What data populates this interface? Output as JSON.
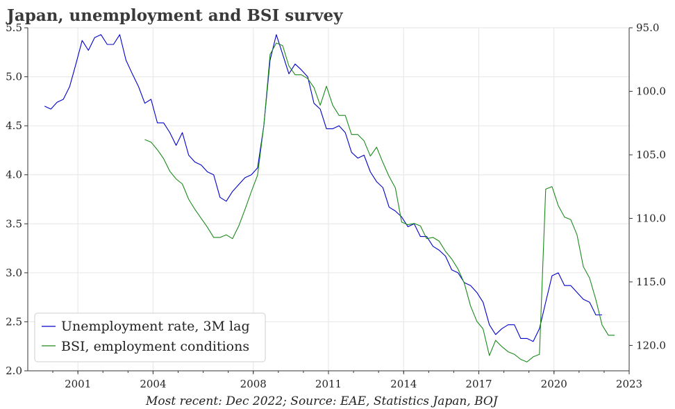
{
  "chart_data": {
    "type": "line",
    "title": "Japan, unemployment and BSI survey",
    "source": "Most recent: Dec 2022; Source: EAE, Statistics Japan, BOJ",
    "grid": true,
    "legend_position": "bottom-left",
    "x_ticks": [
      "2001",
      "2004",
      "2008",
      "2011",
      "2014",
      "2017",
      "2020",
      "2023"
    ],
    "y_left": {
      "range": [
        2.0,
        5.5
      ],
      "ticks": [
        "2.0",
        "2.5",
        "3.0",
        "3.5",
        "4.0",
        "4.5",
        "5.0",
        "5.5"
      ]
    },
    "y_right": {
      "range": [
        95.0,
        122.0
      ],
      "inverted": true,
      "ticks": [
        "95.0",
        "100.0",
        "105.0",
        "110.0",
        "115.0",
        "120.0"
      ]
    },
    "series": [
      {
        "name": "Unemployment rate, 3M lag",
        "color": "#0000cc",
        "axis": "left",
        "x": [
          1999.67,
          1999.92,
          2000.17,
          2000.42,
          2000.67,
          2000.92,
          2001.17,
          2001.42,
          2001.67,
          2001.92,
          2002.17,
          2002.42,
          2002.67,
          2002.92,
          2003.17,
          2003.42,
          2003.67,
          2003.92,
          2004.17,
          2004.42,
          2004.67,
          2004.92,
          2005.17,
          2005.42,
          2005.67,
          2005.92,
          2006.17,
          2006.42,
          2006.67,
          2006.92,
          2007.17,
          2007.42,
          2007.67,
          2007.92,
          2008.17,
          2008.42,
          2008.67,
          2008.92,
          2009.17,
          2009.42,
          2009.67,
          2009.92,
          2010.17,
          2010.42,
          2010.67,
          2010.92,
          2011.17,
          2011.42,
          2011.67,
          2011.92,
          2012.17,
          2012.42,
          2012.67,
          2012.92,
          2013.17,
          2013.42,
          2013.67,
          2013.92,
          2014.17,
          2014.42,
          2014.67,
          2014.92,
          2015.17,
          2015.42,
          2015.67,
          2015.92,
          2016.17,
          2016.42,
          2016.67,
          2016.92,
          2017.17,
          2017.42,
          2017.67,
          2017.92,
          2018.17,
          2018.42,
          2018.67,
          2018.92,
          2019.17,
          2019.42,
          2019.67,
          2019.92,
          2020.17,
          2020.42,
          2020.67,
          2020.92,
          2021.17,
          2021.42,
          2021.67,
          2021.92
        ],
        "values": [
          4.7,
          4.67,
          4.74,
          4.77,
          4.9,
          5.13,
          5.37,
          5.27,
          5.4,
          5.43,
          5.33,
          5.33,
          5.43,
          5.17,
          5.03,
          4.9,
          4.73,
          4.77,
          4.53,
          4.53,
          4.43,
          4.3,
          4.43,
          4.2,
          4.13,
          4.1,
          4.03,
          4.0,
          3.77,
          3.73,
          3.83,
          3.9,
          3.97,
          4.0,
          4.07,
          4.5,
          5.17,
          5.43,
          5.23,
          5.03,
          5.13,
          5.07,
          5.0,
          4.73,
          4.67,
          4.47,
          4.47,
          4.5,
          4.43,
          4.23,
          4.17,
          4.2,
          4.03,
          3.93,
          3.87,
          3.67,
          3.63,
          3.57,
          3.47,
          3.5,
          3.37,
          3.37,
          3.27,
          3.23,
          3.17,
          3.03,
          3.0,
          2.9,
          2.87,
          2.8,
          2.7,
          2.47,
          2.37,
          2.43,
          2.47,
          2.47,
          2.33,
          2.33,
          2.3,
          2.43,
          2.7,
          2.97,
          3.0,
          2.87,
          2.87,
          2.8,
          2.73,
          2.7,
          2.57,
          2.57
        ]
      },
      {
        "name": "BSI, employment conditions",
        "color": "#1a8a1a",
        "axis": "right",
        "x": [
          2003.67,
          2003.92,
          2004.17,
          2004.42,
          2004.67,
          2004.92,
          2005.17,
          2005.42,
          2005.67,
          2005.92,
          2006.17,
          2006.42,
          2006.67,
          2006.92,
          2007.17,
          2007.42,
          2007.67,
          2007.92,
          2008.17,
          2008.42,
          2008.67,
          2008.92,
          2009.17,
          2009.42,
          2009.67,
          2009.92,
          2010.17,
          2010.42,
          2010.67,
          2010.92,
          2011.17,
          2011.42,
          2011.67,
          2011.92,
          2012.17,
          2012.42,
          2012.67,
          2012.92,
          2013.17,
          2013.42,
          2013.67,
          2013.92,
          2014.17,
          2014.42,
          2014.67,
          2014.92,
          2015.17,
          2015.42,
          2015.67,
          2015.92,
          2016.17,
          2016.42,
          2016.67,
          2016.92,
          2017.17,
          2017.42,
          2017.67,
          2017.92,
          2018.17,
          2018.42,
          2018.67,
          2018.92,
          2019.17,
          2019.42,
          2019.67,
          2019.92,
          2020.17,
          2020.42,
          2020.67,
          2020.92,
          2021.17,
          2021.42,
          2021.67,
          2021.92,
          2022.17,
          2022.42
        ],
        "values": [
          103.8,
          104.0,
          104.6,
          105.3,
          106.3,
          106.9,
          107.3,
          108.5,
          109.3,
          110.0,
          110.7,
          111.5,
          111.5,
          111.3,
          111.6,
          110.6,
          109.3,
          107.9,
          106.6,
          102.7,
          97.1,
          96.2,
          96.4,
          98.0,
          98.7,
          98.7,
          99.0,
          99.7,
          101.1,
          99.6,
          101.1,
          101.9,
          101.9,
          103.4,
          103.4,
          103.9,
          105.1,
          104.4,
          105.6,
          106.7,
          107.6,
          110.3,
          110.5,
          110.4,
          110.6,
          111.6,
          111.5,
          111.8,
          112.6,
          113.2,
          114.0,
          115.1,
          116.9,
          118.1,
          118.7,
          120.8,
          119.6,
          120.1,
          120.5,
          120.7,
          121.1,
          121.3,
          120.9,
          120.7,
          107.7,
          107.5,
          109.0,
          109.9,
          110.1,
          111.3,
          113.8,
          114.7,
          116.4,
          118.4,
          119.2,
          119.2
        ]
      }
    ]
  }
}
